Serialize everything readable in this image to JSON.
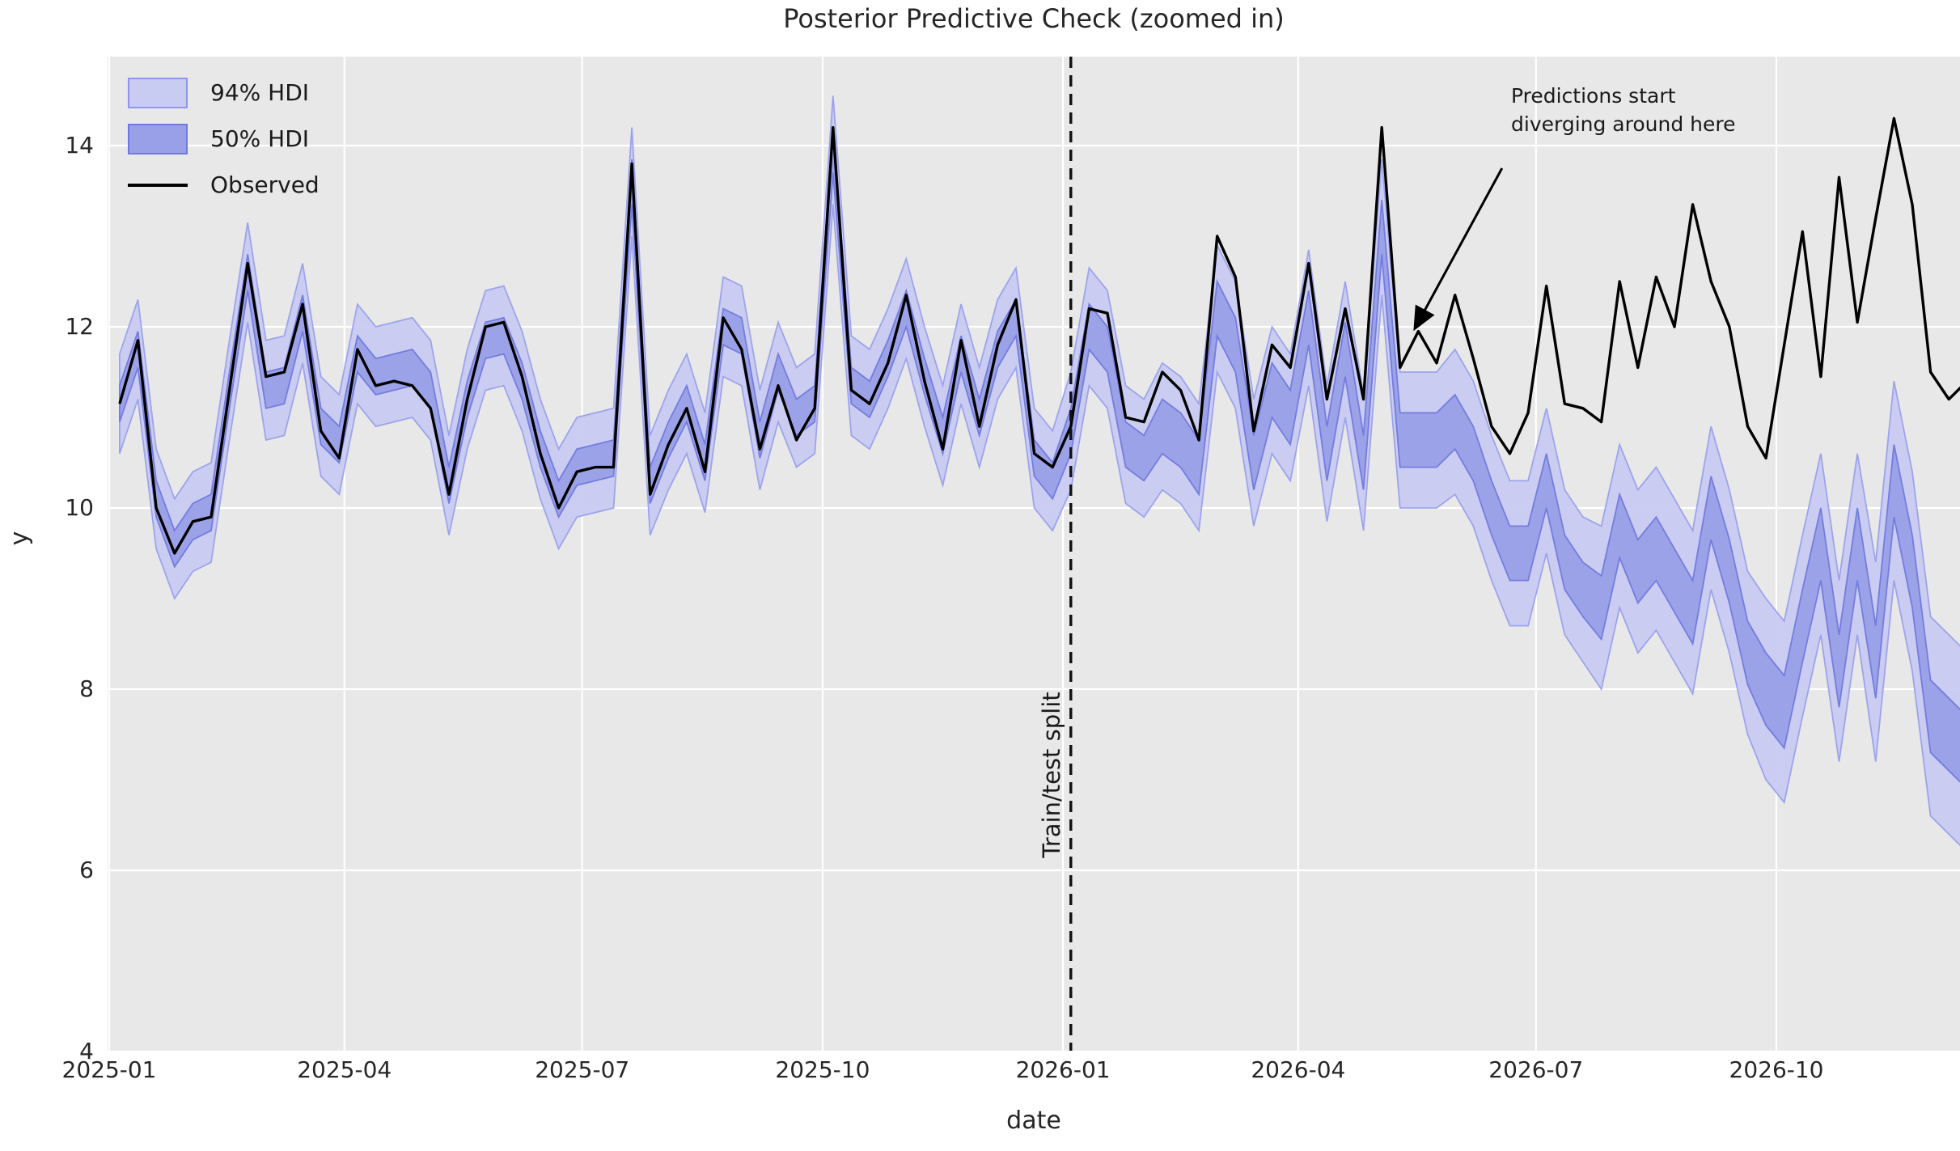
{
  "colors": {
    "plot_bg": "#e8e8e8",
    "grid": "#ffffff",
    "hdi94_fill": "#c9ccf2",
    "hdi50_fill": "#99a0e8",
    "hdi94_edge": "#9aa0ec",
    "hdi50_edge": "#7078de",
    "observed": "#000000",
    "split_line": "#111111",
    "text": "#262626"
  },
  "chart_data": {
    "type": "line",
    "title": "Posterior Predictive Check (zoomed in)",
    "xlabel": "date",
    "ylabel": "y",
    "ylim": [
      4,
      14.98
    ],
    "grid": true,
    "legend_position": "upper left",
    "x_axis_start_date": "2025-01-01",
    "points_start_date": "2025-01-05",
    "points_step_days": 7,
    "n_points": 102,
    "x_tick_labels": [
      "2025-01",
      "2025-04",
      "2025-07",
      "2025-10",
      "2026-01",
      "2026-04",
      "2026-07",
      "2026-10"
    ],
    "x_tick_days": [
      0,
      90,
      181,
      273,
      365,
      455,
      546,
      638
    ],
    "y_tick_labels": [
      "4",
      "6",
      "8",
      "10",
      "12",
      "14"
    ],
    "y_ticks": [
      4,
      6,
      8,
      10,
      12,
      14
    ],
    "split_label": "Train/test split",
    "split_day": 368,
    "legend": [
      {
        "label": "94% HDI",
        "swatch": "hdi94"
      },
      {
        "label": "50% HDI",
        "swatch": "hdi50"
      },
      {
        "label": "Observed",
        "swatch": "line"
      }
    ],
    "annotation": {
      "line1": "Predictions start",
      "line2": "diverging around here",
      "arrow_start": {
        "day": 533,
        "y": 13.75
      },
      "arrow_tip": {
        "day": 500,
        "y": 12.0
      }
    },
    "series": {
      "observed": [
        11.15,
        11.85,
        10.0,
        9.5,
        9.85,
        9.9,
        11.3,
        12.7,
        11.45,
        11.5,
        12.25,
        10.85,
        10.55,
        11.75,
        11.35,
        11.4,
        11.35,
        11.1,
        10.15,
        11.2,
        12.0,
        12.05,
        11.45,
        10.6,
        10.0,
        10.4,
        10.45,
        10.45,
        13.8,
        10.15,
        10.7,
        11.1,
        10.4,
        12.1,
        11.75,
        10.65,
        11.35,
        10.75,
        11.1,
        14.2,
        11.3,
        11.15,
        11.6,
        12.35,
        11.4,
        10.65,
        11.85,
        10.9,
        11.8,
        12.3,
        10.6,
        10.45,
        10.9,
        12.2,
        12.15,
        11.0,
        10.95,
        11.5,
        11.3,
        10.75,
        13.0,
        12.55,
        10.85,
        11.8,
        11.55,
        12.7,
        11.2,
        12.2,
        11.2,
        14.2,
        11.55,
        11.95,
        11.6,
        12.35,
        11.65,
        10.9,
        10.6,
        11.05,
        12.45,
        11.15,
        11.1,
        10.95,
        12.5,
        11.55,
        12.55,
        12.0,
        13.35,
        12.5,
        12.0,
        10.9,
        10.55,
        11.8,
        13.05,
        11.45,
        13.65,
        12.05,
        13.2,
        14.3,
        13.35,
        11.5,
        11.2,
        11.4
      ],
      "hdi94_lower": [
        10.6,
        11.2,
        9.55,
        9.0,
        9.3,
        9.4,
        10.75,
        12.05,
        10.75,
        10.8,
        11.6,
        10.35,
        10.15,
        11.15,
        10.9,
        10.95,
        11.0,
        10.75,
        9.7,
        10.65,
        11.3,
        11.35,
        10.85,
        10.1,
        9.55,
        9.9,
        9.95,
        10.0,
        13.0,
        9.7,
        10.2,
        10.6,
        9.95,
        11.45,
        11.35,
        10.2,
        10.95,
        10.45,
        10.6,
        13.35,
        10.8,
        10.65,
        11.1,
        11.65,
        10.9,
        10.25,
        11.15,
        10.45,
        11.2,
        11.55,
        10.0,
        9.75,
        10.2,
        11.35,
        11.1,
        10.05,
        9.9,
        10.2,
        10.05,
        9.75,
        11.5,
        11.1,
        9.8,
        10.6,
        10.3,
        11.35,
        9.85,
        11.0,
        9.75,
        12.35,
        10.0,
        10.0,
        10.0,
        10.15,
        9.8,
        9.2,
        8.7,
        8.7,
        9.5,
        8.6,
        8.3,
        8.0,
        8.9,
        8.4,
        8.65,
        8.3,
        7.95,
        9.1,
        8.4,
        7.5,
        7.0,
        6.75,
        7.7,
        8.6,
        7.2,
        8.6,
        7.2,
        9.2,
        8.2,
        6.6,
        6.4,
        6.2
      ],
      "hdi94_upper": [
        11.7,
        12.3,
        10.65,
        10.1,
        10.4,
        10.5,
        11.85,
        13.15,
        11.85,
        11.9,
        12.7,
        11.45,
        11.25,
        12.25,
        12.0,
        12.05,
        12.1,
        11.85,
        10.8,
        11.75,
        12.4,
        12.45,
        11.95,
        11.2,
        10.65,
        11.0,
        11.05,
        11.1,
        14.2,
        10.8,
        11.3,
        11.7,
        11.05,
        12.55,
        12.45,
        11.3,
        12.05,
        11.55,
        11.7,
        14.55,
        11.9,
        11.75,
        12.2,
        12.75,
        12.0,
        11.35,
        12.25,
        11.55,
        12.3,
        12.65,
        11.1,
        10.85,
        11.5,
        12.65,
        12.4,
        11.35,
        11.2,
        11.6,
        11.45,
        11.15,
        12.9,
        12.5,
        11.2,
        12.0,
        11.7,
        12.85,
        11.35,
        12.5,
        11.25,
        13.85,
        11.5,
        11.5,
        11.5,
        11.75,
        11.4,
        10.8,
        10.3,
        10.3,
        11.1,
        10.2,
        9.9,
        9.8,
        10.7,
        10.2,
        10.45,
        10.1,
        9.75,
        10.9,
        10.2,
        9.3,
        9.0,
        8.75,
        9.7,
        10.6,
        9.2,
        10.6,
        9.4,
        11.4,
        10.4,
        8.8,
        8.6,
        8.4
      ],
      "hdi50_lower": [
        10.95,
        11.55,
        9.9,
        9.35,
        9.65,
        9.75,
        11.1,
        12.4,
        11.1,
        11.15,
        11.95,
        10.7,
        10.5,
        11.5,
        11.25,
        11.3,
        11.35,
        11.1,
        10.05,
        11.0,
        11.65,
        11.7,
        11.2,
        10.45,
        9.9,
        10.25,
        10.3,
        10.35,
        13.35,
        10.05,
        10.55,
        10.95,
        10.3,
        11.8,
        11.7,
        10.55,
        11.3,
        10.8,
        10.95,
        13.7,
        11.15,
        11.0,
        11.45,
        12.0,
        11.25,
        10.6,
        11.5,
        10.8,
        11.55,
        11.9,
        10.35,
        10.1,
        10.6,
        11.75,
        11.5,
        10.45,
        10.3,
        10.6,
        10.45,
        10.15,
        11.9,
        11.5,
        10.2,
        11.0,
        10.7,
        11.8,
        10.3,
        11.45,
        10.2,
        12.8,
        10.45,
        10.45,
        10.45,
        10.65,
        10.3,
        9.7,
        9.2,
        9.2,
        10.0,
        9.1,
        8.8,
        8.55,
        9.45,
        8.95,
        9.2,
        8.85,
        8.5,
        9.65,
        8.95,
        8.05,
        7.6,
        7.35,
        8.3,
        9.2,
        7.8,
        9.2,
        7.9,
        9.9,
        8.9,
        7.3,
        7.1,
        6.9
      ],
      "hdi50_upper": [
        11.35,
        11.95,
        10.3,
        9.75,
        10.05,
        10.15,
        11.5,
        12.8,
        11.5,
        11.55,
        12.35,
        11.1,
        10.9,
        11.9,
        11.65,
        11.7,
        11.75,
        11.5,
        10.45,
        11.4,
        12.05,
        12.1,
        11.6,
        10.85,
        10.3,
        10.65,
        10.7,
        10.75,
        13.85,
        10.45,
        10.95,
        11.35,
        10.7,
        12.2,
        12.1,
        10.95,
        11.7,
        11.2,
        11.35,
        14.2,
        11.55,
        11.4,
        11.85,
        12.4,
        11.65,
        11.0,
        11.9,
        11.2,
        11.95,
        12.3,
        10.75,
        10.5,
        11.1,
        12.25,
        12.0,
        10.95,
        10.8,
        11.2,
        11.05,
        10.75,
        12.5,
        12.1,
        10.8,
        11.6,
        11.3,
        12.4,
        10.9,
        12.05,
        10.8,
        13.4,
        11.05,
        11.05,
        11.05,
        11.25,
        10.9,
        10.3,
        9.8,
        9.8,
        10.6,
        9.7,
        9.4,
        9.25,
        10.15,
        9.65,
        9.9,
        9.55,
        9.2,
        10.35,
        9.65,
        8.75,
        8.4,
        8.15,
        9.1,
        10.0,
        8.6,
        10.0,
        8.7,
        10.7,
        9.7,
        8.1,
        7.9,
        7.7
      ]
    }
  }
}
